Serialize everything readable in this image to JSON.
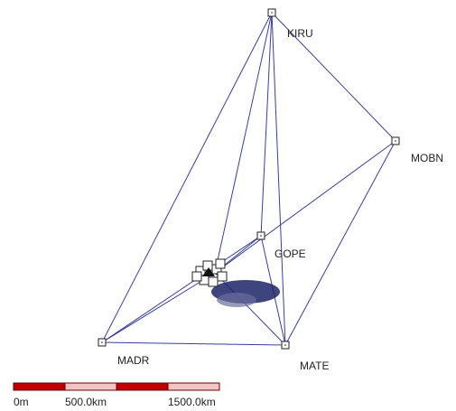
{
  "stations": [
    {
      "label": "KIRU"
    },
    {
      "label": "MOBN"
    },
    {
      "label": "GOPE"
    },
    {
      "label": "MADR"
    },
    {
      "label": "MATE"
    }
  ],
  "scale_bar": {
    "labels": [
      "0m",
      "500.0km",
      "1500.0km"
    ]
  }
}
